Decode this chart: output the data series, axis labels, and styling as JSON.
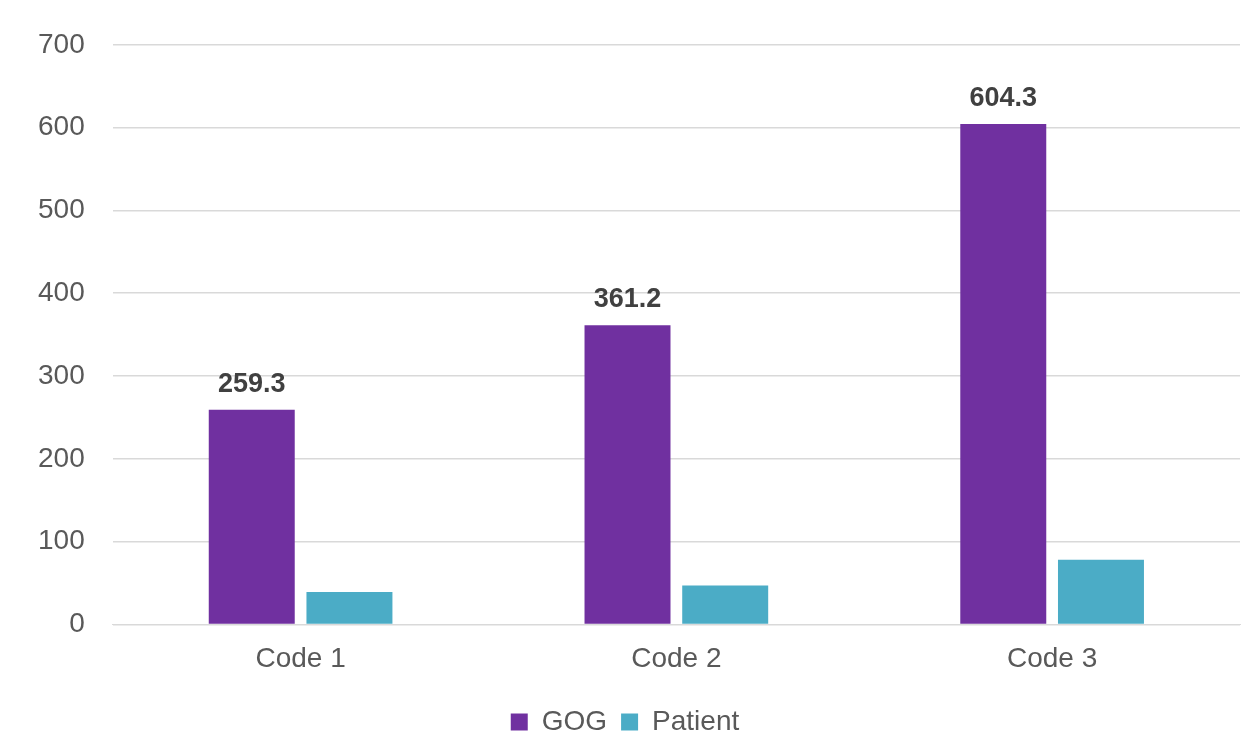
{
  "chart_data": {
    "type": "bar",
    "categories": [
      "Code 1",
      "Code 2",
      "Code 3"
    ],
    "series": [
      {
        "name": "GOG",
        "color": "#7030a0",
        "values": [
          259.3,
          361.2,
          604.3
        ],
        "value_labels": [
          "259.3",
          "361.2",
          "604.3"
        ]
      },
      {
        "name": "Patient",
        "color": "#4bacc6",
        "values": [
          39,
          47,
          78
        ]
      }
    ],
    "ylim": [
      0,
      700
    ],
    "yticks": [
      0,
      100,
      200,
      300,
      400,
      500,
      600,
      700
    ],
    "grid": "y",
    "legend": "bottom"
  }
}
